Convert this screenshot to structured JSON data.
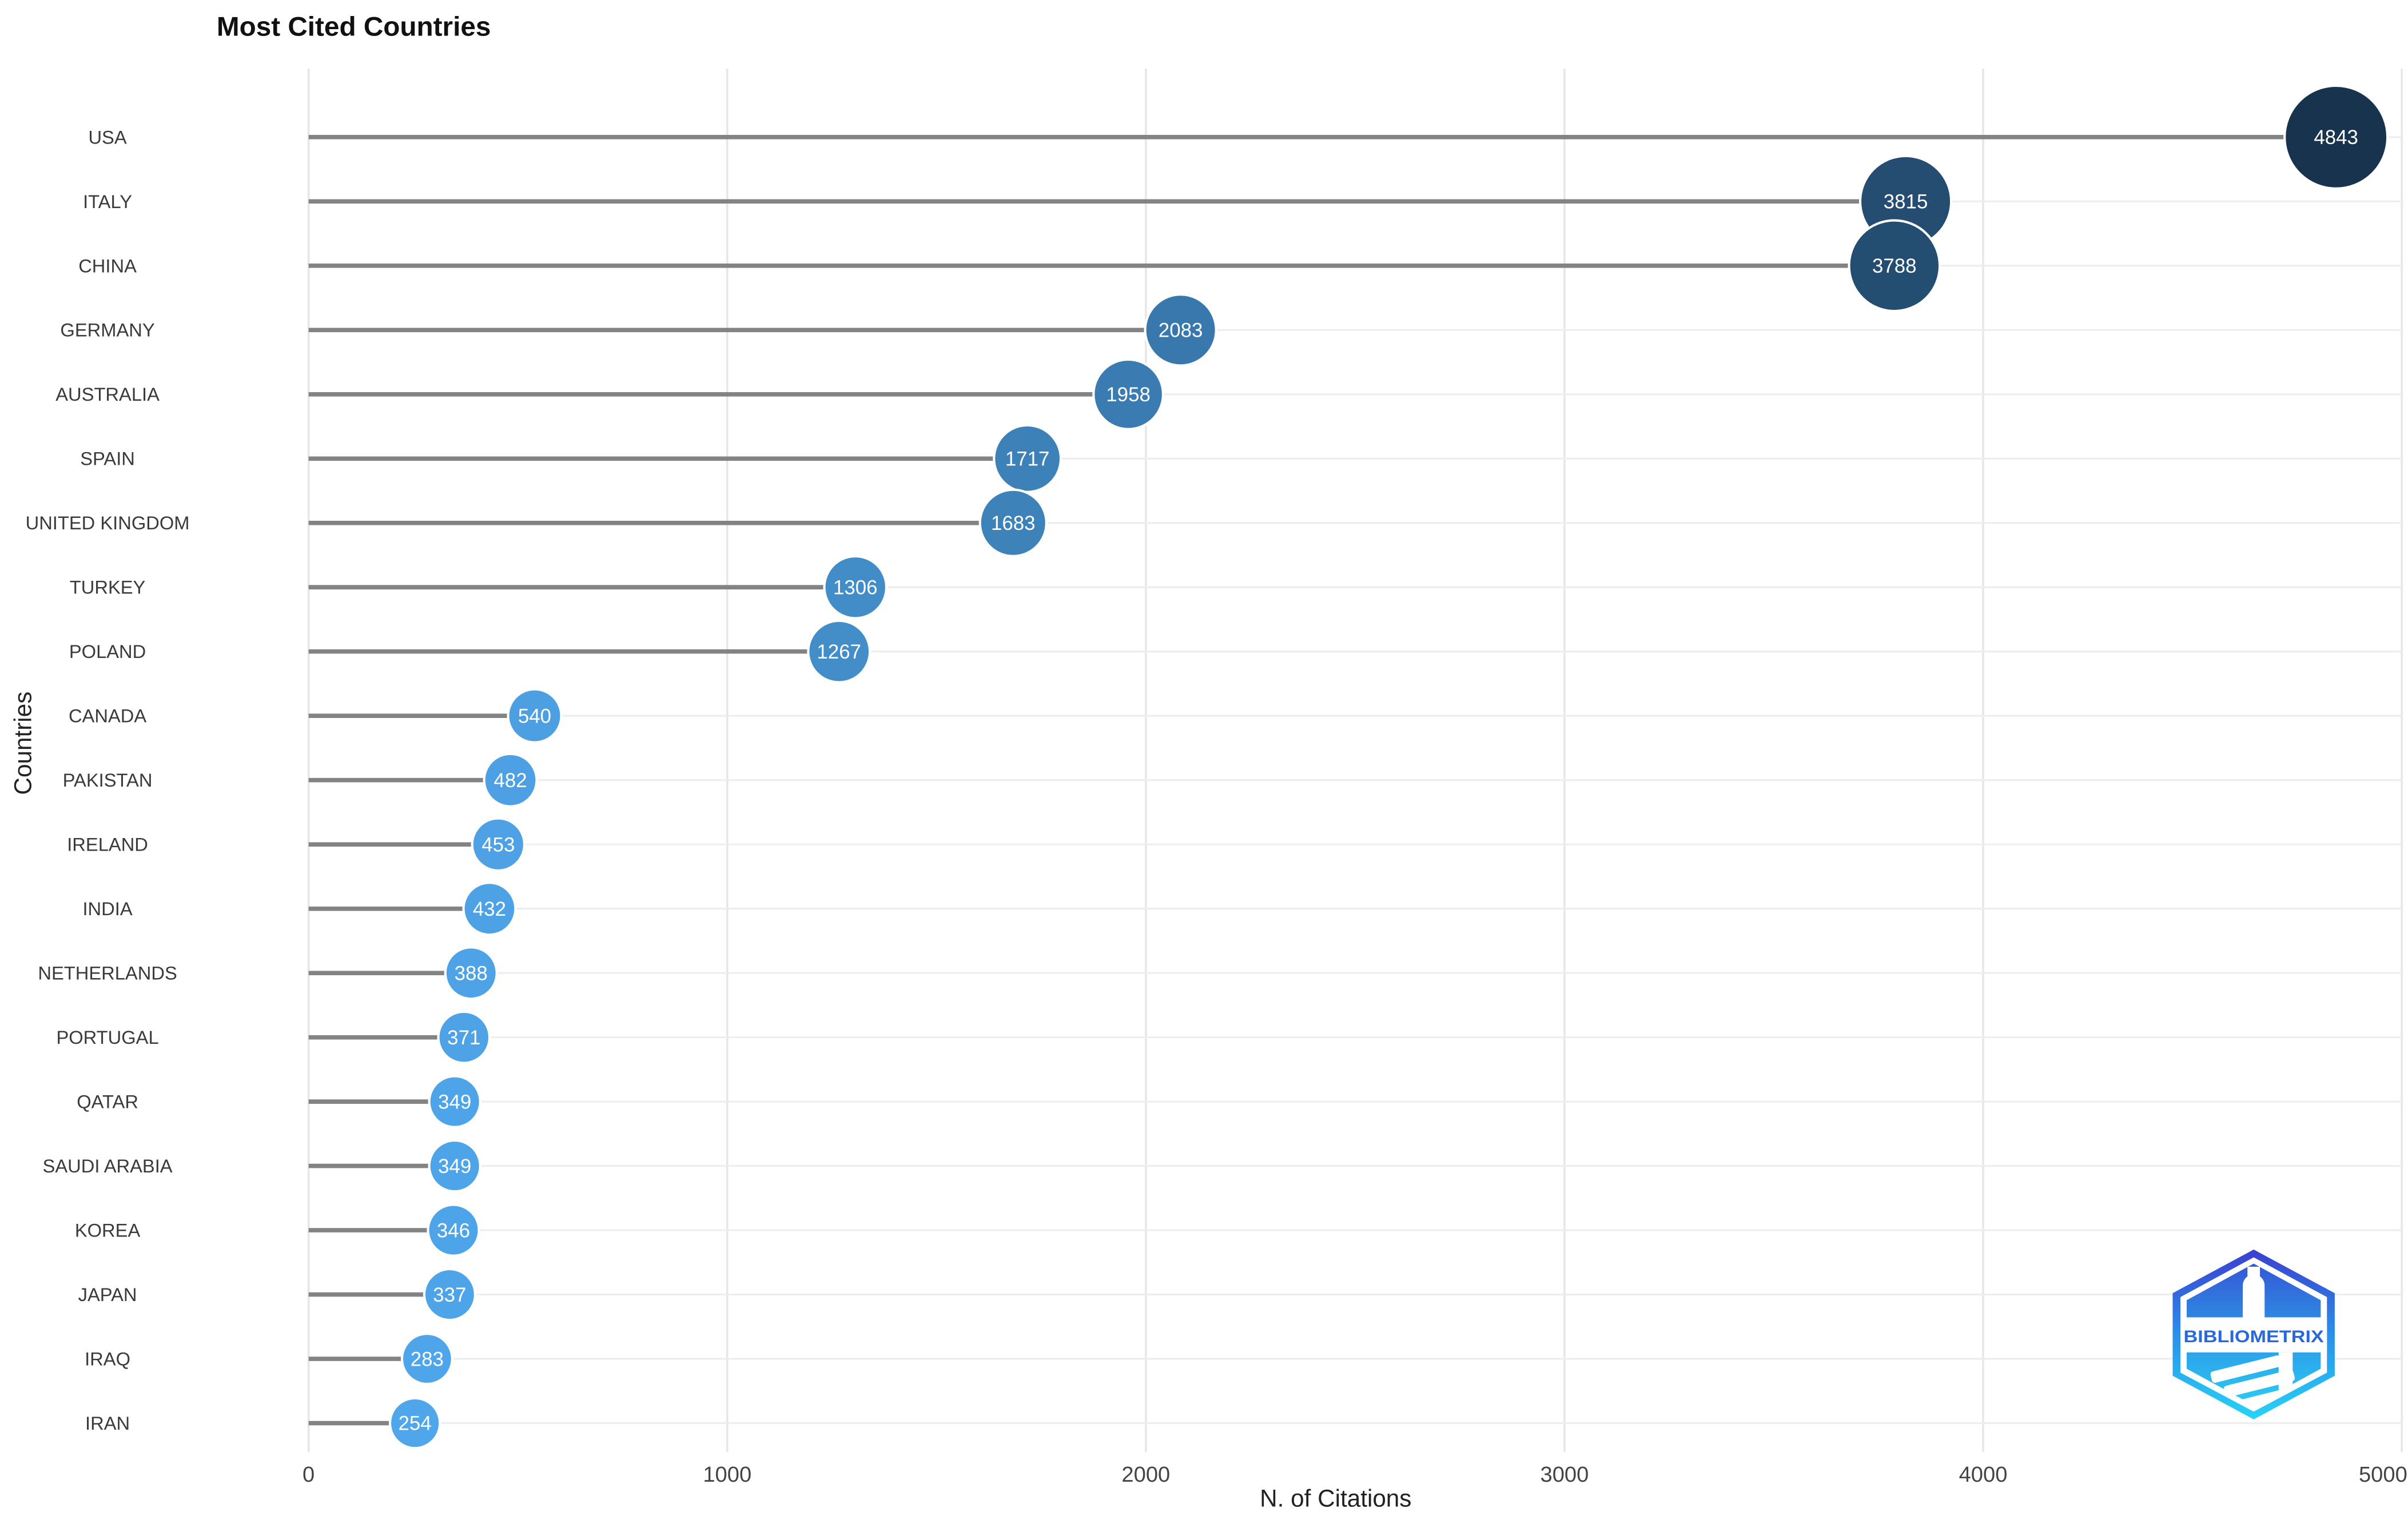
{
  "chart_data": {
    "type": "lollipop",
    "title": "Most Cited Countries",
    "xlabel": "N. of Citations",
    "ylabel": "Countries",
    "xlim": [
      0,
      5000
    ],
    "x_ticks": [
      0,
      1000,
      2000,
      3000,
      4000,
      5000
    ],
    "legend": "none",
    "grid": "light vertical gridlines at each 1000 plus faint horizontal line per category row; gray stem from 0 to marker",
    "categories": [
      "USA",
      "ITALY",
      "CHINA",
      "GERMANY",
      "AUSTRALIA",
      "SPAIN",
      "UNITED KINGDOM",
      "TURKEY",
      "POLAND",
      "CANADA",
      "PAKISTAN",
      "IRELAND",
      "INDIA",
      "NETHERLANDS",
      "PORTUGAL",
      "QATAR",
      "SAUDI ARABIA",
      "KOREA",
      "JAPAN",
      "IRAQ",
      "IRAN"
    ],
    "values": [
      4843,
      3815,
      3788,
      2083,
      1958,
      1717,
      1683,
      1306,
      1267,
      540,
      482,
      453,
      432,
      388,
      371,
      349,
      349,
      346,
      337,
      283,
      254
    ],
    "color_scale": {
      "low": "#4FA6EB",
      "high": "#17334E",
      "note": "marker fill and marker size both scale with citation count"
    },
    "style": {
      "background": "#ffffff",
      "stem_color": "#838383",
      "grid_color": "#e7e7e7",
      "row_line_color": "#ededed",
      "value_label_color": "#ffffff",
      "label_color": "#3a3a3a",
      "tick_color": "#444444",
      "title_color": "#111111"
    }
  },
  "logo": {
    "label": "BIBLIOMETRIX",
    "gradient_top": "#3b3fd0",
    "gradient_mid": "#2b8fe8",
    "gradient_bottom": "#26d4f6",
    "text_color": "#2968d8"
  }
}
